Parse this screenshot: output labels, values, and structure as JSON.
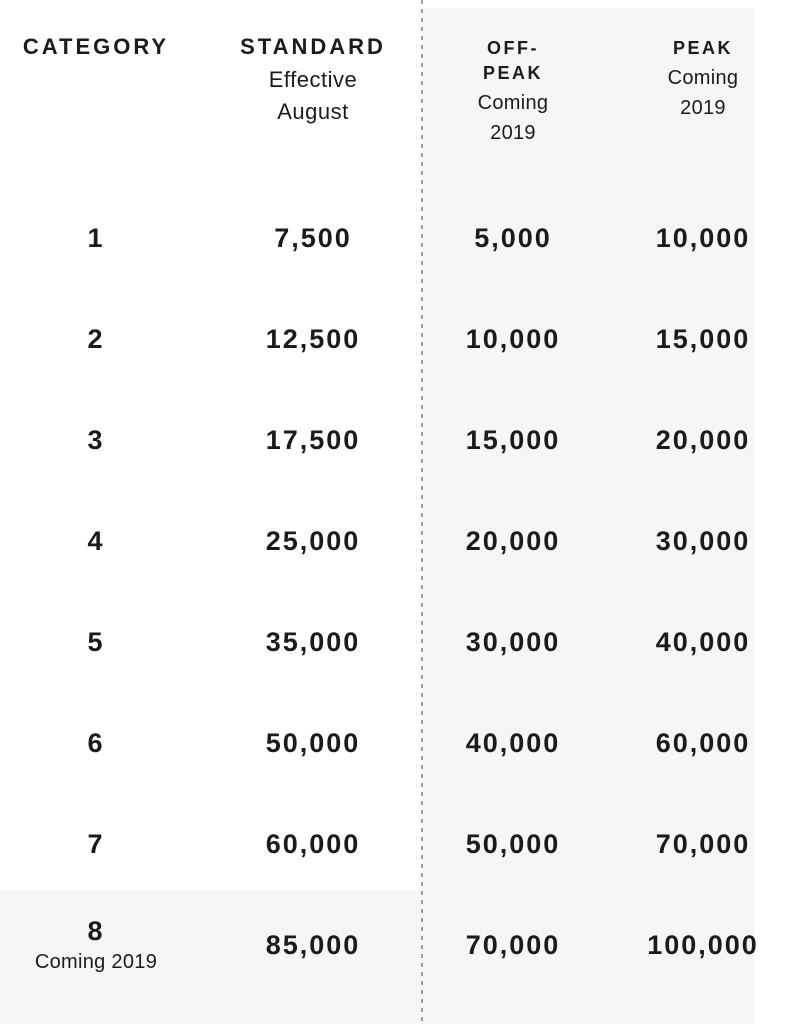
{
  "colors": {
    "background": "#ffffff",
    "panel": "#f6f6f6",
    "text": "#1b1b1b",
    "divider": "#9e9e9e"
  },
  "table": {
    "headers": {
      "category": {
        "title": "CATEGORY"
      },
      "standard": {
        "title": "STANDARD",
        "sub": [
          "Effective",
          "August"
        ]
      },
      "off_peak": {
        "title_lines": [
          "OFF-",
          "PEAK"
        ],
        "sub": [
          "Coming",
          "2019"
        ]
      },
      "peak": {
        "title": "PEAK",
        "sub": [
          "Coming",
          "2019"
        ]
      }
    },
    "rows": [
      {
        "category": "1",
        "standard": "7,500",
        "off_peak": "5,000",
        "peak": "10,000"
      },
      {
        "category": "2",
        "standard": "12,500",
        "off_peak": "10,000",
        "peak": "15,000"
      },
      {
        "category": "3",
        "standard": "17,500",
        "off_peak": "15,000",
        "peak": "20,000"
      },
      {
        "category": "4",
        "standard": "25,000",
        "off_peak": "20,000",
        "peak": "30,000"
      },
      {
        "category": "5",
        "standard": "35,000",
        "off_peak": "30,000",
        "peak": "40,000"
      },
      {
        "category": "6",
        "standard": "50,000",
        "off_peak": "40,000",
        "peak": "60,000"
      },
      {
        "category": "7",
        "standard": "60,000",
        "off_peak": "50,000",
        "peak": "70,000"
      },
      {
        "category": "8",
        "note": "Coming 2019",
        "standard": "85,000",
        "off_peak": "70,000",
        "peak": "100,000"
      }
    ]
  },
  "chart_data": {
    "type": "table",
    "columns": [
      "CATEGORY",
      "STANDARD Effective August",
      "OFF-PEAK Coming 2019",
      "PEAK Coming 2019"
    ],
    "rows": [
      [
        1,
        7500,
        5000,
        10000
      ],
      [
        2,
        12500,
        10000,
        15000
      ],
      [
        3,
        17500,
        15000,
        20000
      ],
      [
        4,
        25000,
        20000,
        30000
      ],
      [
        5,
        35000,
        30000,
        40000
      ],
      [
        6,
        50000,
        40000,
        60000
      ],
      [
        7,
        60000,
        50000,
        70000
      ],
      [
        8,
        85000,
        70000,
        100000
      ]
    ],
    "annotations": {
      "category_8_note": "Coming 2019"
    },
    "layout": {
      "divider_after_column": 2,
      "shaded_columns": [
        "OFF-PEAK",
        "PEAK"
      ],
      "highlighted_row": 8
    }
  }
}
